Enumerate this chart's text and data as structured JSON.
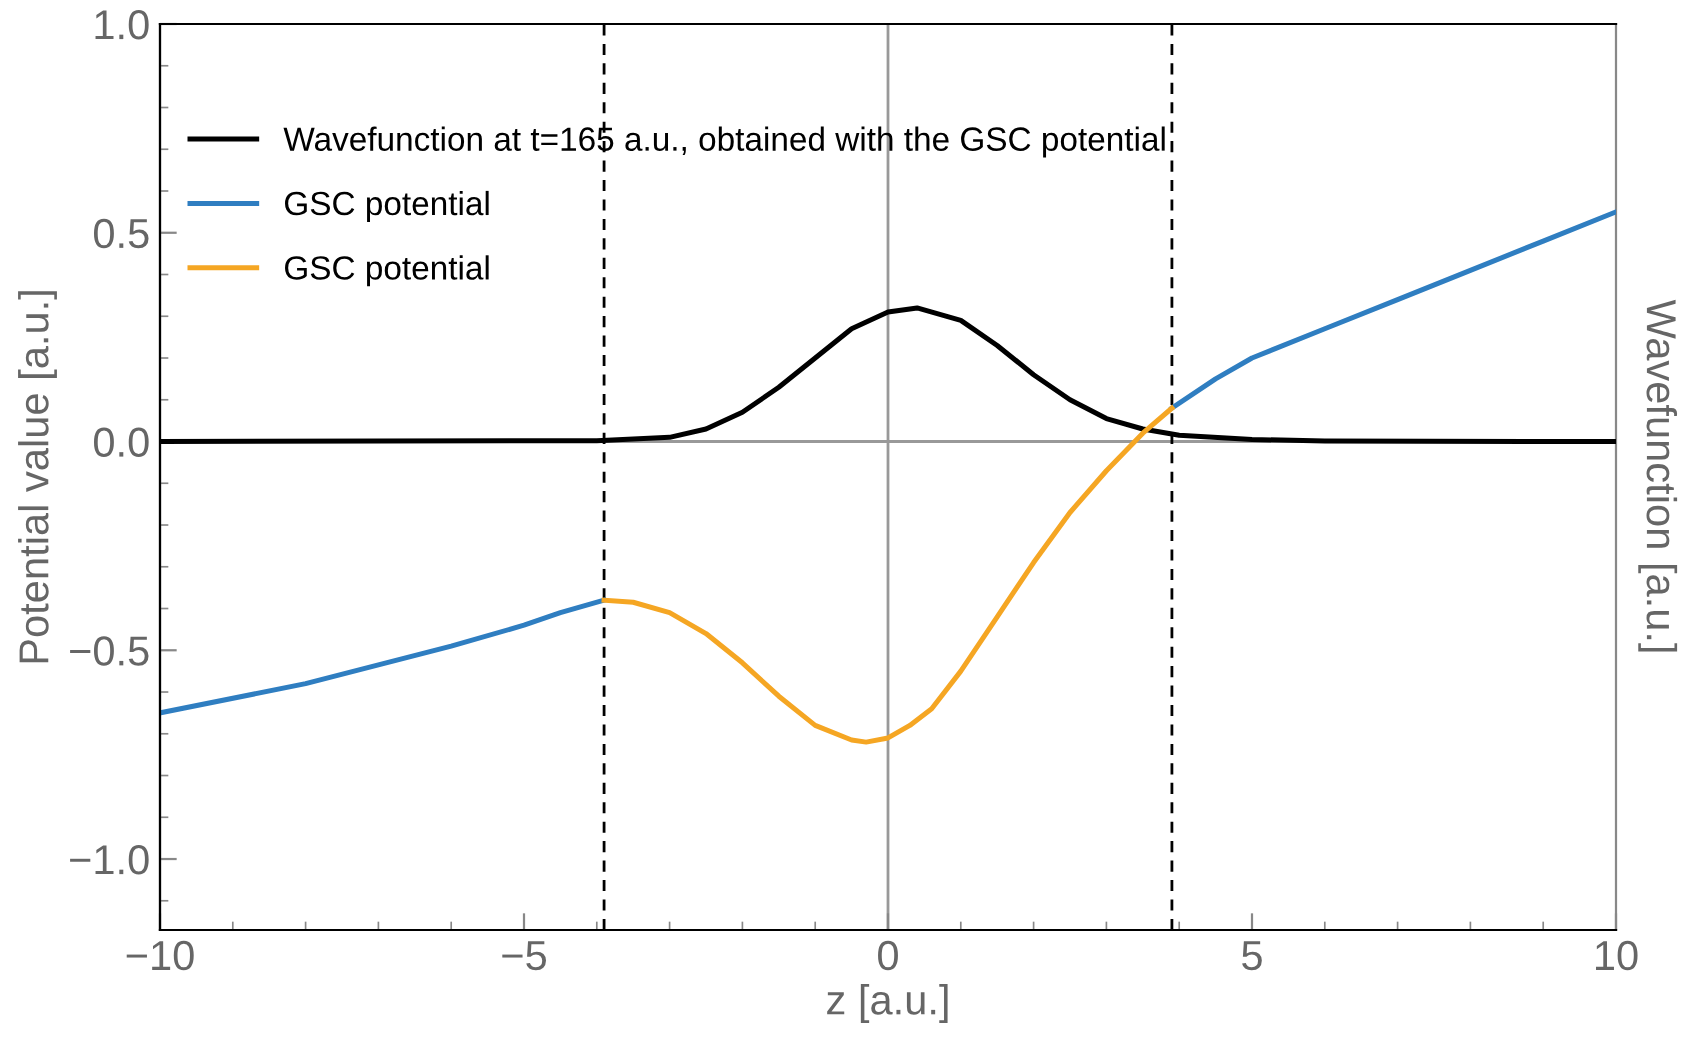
{
  "chart_data": {
    "type": "line",
    "xlabel": "z [a.u.]",
    "ylabel": "Potential value [a.u.]",
    "y2label": "Wavefunction [a.u.]",
    "xlim": [
      -10,
      10
    ],
    "ylim": [
      -1.17,
      1.0
    ],
    "xticks": [
      {
        "value": -10,
        "label": "−10"
      },
      {
        "value": -5,
        "label": "−5"
      },
      0,
      5,
      10
    ],
    "yticks": [
      {
        "value": -1.0,
        "label": "−1.0"
      },
      {
        "value": -0.5,
        "label": "−0.5"
      },
      {
        "value": 0,
        "label": "0.0"
      },
      0.5,
      {
        "value": 1.0,
        "label": "1.0"
      }
    ],
    "grid": false,
    "legend": "top left",
    "marker": "none",
    "line_style": "solid",
    "series": [
      {
        "name": "Wavefunction at t=165 a.u., obtained with the GSC potential",
        "color": "#000000",
        "x": [
          -10,
          -4,
          -3,
          -2.5,
          -2,
          -1.5,
          -1,
          -0.5,
          0,
          0.4,
          1,
          1.5,
          2,
          2.5,
          3,
          3.5,
          4,
          5,
          6,
          10
        ],
        "values": [
          0,
          0.002,
          0.01,
          0.03,
          0.07,
          0.13,
          0.2,
          0.27,
          0.31,
          0.32,
          0.29,
          0.23,
          0.16,
          0.1,
          0.055,
          0.03,
          0.015,
          0.005,
          0.001,
          0
        ]
      },
      {
        "name": "GSC potential",
        "color": "#2f7ec1",
        "x": [
          -10,
          -8,
          -6,
          -5,
          -4.5,
          -3.9,
          0,
          3.9,
          4.5,
          5,
          6,
          7,
          8,
          9,
          10
        ],
        "values": [
          -0.65,
          -0.58,
          -0.49,
          -0.44,
          -0.41,
          -0.38,
          null,
          0.08,
          0.15,
          0.2,
          0.27,
          0.34,
          0.41,
          0.48,
          0.55
        ]
      },
      {
        "name": "GSC potential",
        "color": "#f5a623",
        "x": [
          -3.9,
          -3.5,
          -3,
          -2.5,
          -2,
          -1.5,
          -1,
          -0.5,
          -0.3,
          0,
          0.3,
          0.6,
          1,
          1.5,
          2,
          2.5,
          3,
          3.5,
          3.9
        ],
        "values": [
          -0.38,
          -0.385,
          -0.41,
          -0.46,
          -0.53,
          -0.61,
          -0.68,
          -0.715,
          -0.72,
          -0.71,
          -0.68,
          -0.64,
          -0.55,
          -0.42,
          -0.29,
          -0.17,
          -0.07,
          0.02,
          0.08
        ]
      }
    ],
    "ref_lines": [
      {
        "axis": "x",
        "value": 0,
        "color": "#999999",
        "line_style": "solid"
      },
      {
        "axis": "y",
        "value": 0,
        "color": "#999999",
        "line_style": "solid"
      },
      {
        "axis": "x",
        "value": -3.9,
        "color": "#000000",
        "line_style": "dashed"
      },
      {
        "axis": "x",
        "value": 3.9,
        "color": "#000000",
        "line_style": "dashed"
      }
    ]
  }
}
